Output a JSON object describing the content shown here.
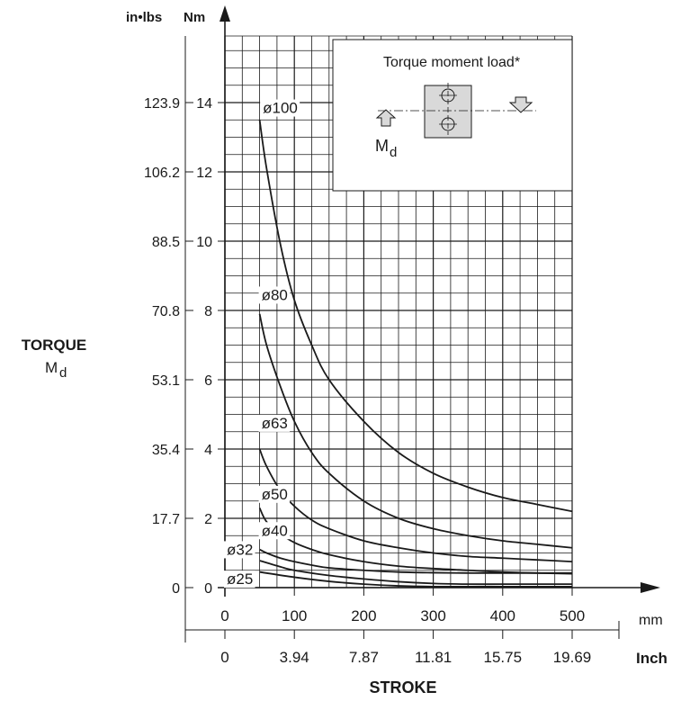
{
  "chart_data": {
    "type": "line",
    "title": "",
    "y_units": {
      "imperial": "in•lbs",
      "metric": "Nm"
    },
    "ylabel": {
      "main": "TORQUE",
      "symbol": "M",
      "subscript": "d"
    },
    "xlabel": "STROKE",
    "x_units": {
      "metric": "mm",
      "imperial": "Inch"
    },
    "ylim": [
      0,
      16
    ],
    "xlim": [
      0,
      500
    ],
    "y_ticks": [
      {
        "nm": 0,
        "nm_label": "0",
        "inlbs_label": "0"
      },
      {
        "nm": 2,
        "nm_label": "2",
        "inlbs_label": "17.7"
      },
      {
        "nm": 4,
        "nm_label": "4",
        "inlbs_label": "35.4"
      },
      {
        "nm": 6,
        "nm_label": "6",
        "inlbs_label": "53.1"
      },
      {
        "nm": 8,
        "nm_label": "8",
        "inlbs_label": "70.8"
      },
      {
        "nm": 10,
        "nm_label": "10",
        "inlbs_label": "88.5"
      },
      {
        "nm": 12,
        "nm_label": "12",
        "inlbs_label": "106.2"
      },
      {
        "nm": 14,
        "nm_label": "14",
        "inlbs_label": "123.9"
      }
    ],
    "x_ticks": [
      {
        "mm": 0,
        "mm_label": "0",
        "inch_label": "0"
      },
      {
        "mm": 100,
        "mm_label": "100",
        "inch_label": "3.94"
      },
      {
        "mm": 200,
        "mm_label": "200",
        "inch_label": "7.87"
      },
      {
        "mm": 300,
        "mm_label": "300",
        "inch_label": "11.81"
      },
      {
        "mm": 400,
        "mm_label": "400",
        "inch_label": "15.75"
      },
      {
        "mm": 500,
        "mm_label": "500",
        "inch_label": "19.69"
      }
    ],
    "grid": true,
    "series": [
      {
        "name": "ø100",
        "label_at": [
          52,
          13.7
        ],
        "x": [
          50,
          60,
          80,
          100,
          125,
          150,
          200,
          250,
          300,
          350,
          400,
          450,
          500
        ],
        "y": [
          13.5,
          12.1,
          9.9,
          8.3,
          7.0,
          6.0,
          4.8,
          3.9,
          3.3,
          2.9,
          2.6,
          2.4,
          2.2
        ]
      },
      {
        "name": "ø80",
        "label_at": [
          50,
          8.3
        ],
        "x": [
          50,
          60,
          80,
          100,
          125,
          150,
          200,
          250,
          300,
          350,
          400,
          450,
          500
        ],
        "y": [
          7.9,
          7.0,
          5.8,
          4.8,
          3.9,
          3.3,
          2.5,
          2.0,
          1.7,
          1.5,
          1.35,
          1.25,
          1.15
        ]
      },
      {
        "name": "ø63",
        "label_at": [
          50,
          4.6
        ],
        "x": [
          50,
          60,
          80,
          100,
          125,
          150,
          200,
          250,
          300,
          350,
          400,
          450,
          500
        ],
        "y": [
          4.0,
          3.5,
          2.8,
          2.35,
          1.95,
          1.7,
          1.35,
          1.15,
          1.0,
          0.9,
          0.85,
          0.8,
          0.75
        ]
      },
      {
        "name": "ø50",
        "label_at": [
          50,
          2.55
        ],
        "x": [
          50,
          60,
          80,
          100,
          125,
          150,
          200,
          250,
          300,
          350,
          400,
          450,
          500
        ],
        "y": [
          2.3,
          1.9,
          1.55,
          1.3,
          1.1,
          0.95,
          0.75,
          0.62,
          0.55,
          0.5,
          0.45,
          0.42,
          0.4
        ]
      },
      {
        "name": "ø40",
        "label_at": [
          50,
          1.5
        ],
        "x": [
          50,
          60,
          80,
          100,
          125,
          150,
          200,
          250,
          300,
          350,
          400,
          450,
          500
        ],
        "y": [
          1.1,
          1.0,
          0.85,
          0.75,
          0.65,
          0.57,
          0.5,
          0.45,
          0.43,
          0.42,
          0.42,
          0.42,
          0.42
        ]
      },
      {
        "name": "ø32",
        "label_at": [
          0,
          0.95
        ],
        "x": [
          50,
          80,
          100,
          150,
          200,
          250,
          300,
          350,
          400,
          450,
          500
        ],
        "y": [
          0.78,
          0.6,
          0.5,
          0.35,
          0.25,
          0.17,
          0.12,
          0.1,
          0.1,
          0.1,
          0.1
        ]
      },
      {
        "name": "ø25",
        "label_at": [
          0,
          0.1
        ],
        "x": [
          50,
          100,
          150,
          200,
          250,
          300,
          350,
          400,
          450,
          500
        ],
        "y": [
          0.45,
          0.3,
          0.18,
          0.1,
          0.05,
          0.03,
          0.03,
          0.03,
          0.03,
          0.03
        ]
      }
    ],
    "inset": {
      "title": "Torque moment load*",
      "moment_symbol": "M",
      "moment_subscript": "d",
      "fill": "#d9d9d9"
    },
    "curve_color": "#1a1a1a",
    "grid_color": "#1a1a1a"
  }
}
